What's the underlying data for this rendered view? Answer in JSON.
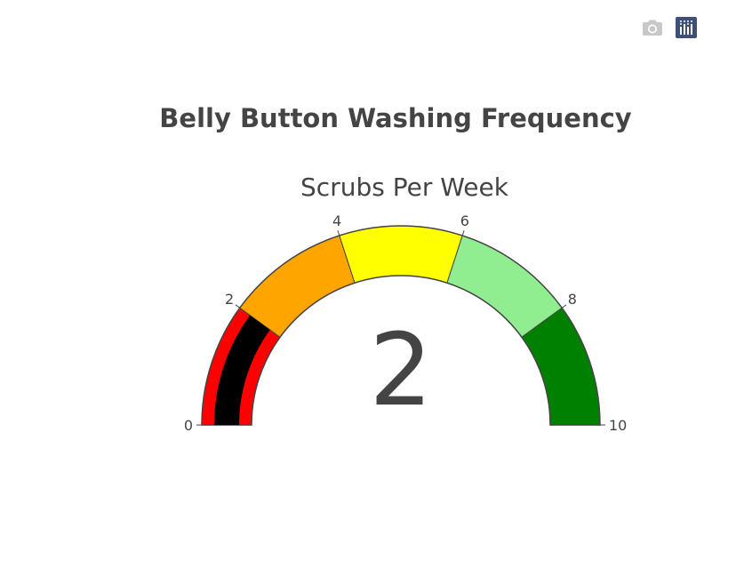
{
  "modebar": {
    "camera_icon": "camera-icon",
    "plotly_logo_icon": "plotly-logo-icon",
    "camera_color": "#c8c8c8",
    "logo_color": "#3f4f75"
  },
  "chart_data": {
    "type": "gauge",
    "title": "Belly Button Washing Frequency",
    "subtitle": "Scrubs Per Week",
    "value": 2,
    "value_label": "2",
    "range": [
      0,
      10
    ],
    "tick_values": [
      0,
      2,
      4,
      6,
      8,
      10
    ],
    "tick_labels": [
      "0",
      "2",
      "4",
      "6",
      "8",
      "10"
    ],
    "bar_color": "#000000",
    "steps": [
      {
        "range": [
          0,
          2
        ],
        "color": "#ff0000"
      },
      {
        "range": [
          2,
          4
        ],
        "color": "#ffa500"
      },
      {
        "range": [
          4,
          6
        ],
        "color": "#ffff00"
      },
      {
        "range": [
          6,
          8
        ],
        "color": "#90ee90"
      },
      {
        "range": [
          8,
          10
        ],
        "color": "#008000"
      }
    ],
    "border_color": "#444444",
    "text_color": "#444444"
  }
}
